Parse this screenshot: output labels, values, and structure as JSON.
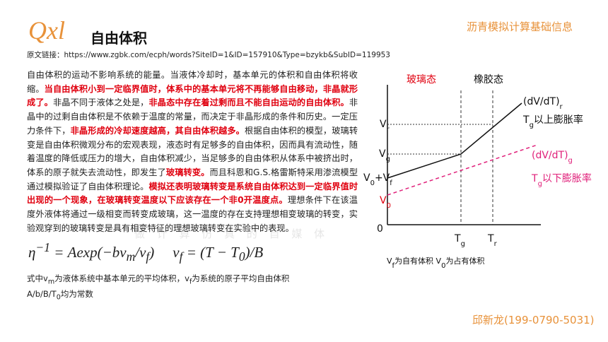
{
  "header": {
    "logo": "Qxl",
    "title": "自由体积",
    "brand": "沥青模拟计算基础信息"
  },
  "source": "原文链接：https://www.zgbk.com/ecph/words?SiteID=1&ID=157910&Type=bzykb&SubID=119953",
  "body": [
    {
      "t": "自由体积的运动不影响系统的能量。当液体冷却时，基本单元的体积和自由体积将收缩。"
    },
    {
      "t": "当自由体积小到一定临界值时，体系中的基本单元将不再能够自由移动，非晶就形成了。",
      "s": "hl"
    },
    {
      "t": "非晶不同于液体之处是，"
    },
    {
      "t": "非晶态中存在着过剩而且不能自由运动的自由体积。",
      "s": "hl"
    },
    {
      "t": "非晶中的过剩自由体积是不依赖于温度的常量，而决定于非晶形成的条件和历史。一定压力条件下，"
    },
    {
      "t": "非晶形成的冷却速度越高，其自由体积越多。",
      "s": "hl"
    },
    {
      "t": "根据自由体积的模型，玻璃转变是自由体积微观分布的宏观表现，液态时有足够多的自由体积，因而具有流动性，随着温度的降低或压力的增大，自由体积减少，当足够多的自由体积从体系中被挤出时，体系的原子就失去流动性，即发生了"
    },
    {
      "t": "玻璃转变。",
      "s": "hl"
    },
    {
      "t": "而且科恩和G.S.格雷斯特采用渗流模型通过模拟验证了自由体积理论。"
    },
    {
      "t": "模拟还表明玻璃转变是系统自由体积达到一定临界值时出现的一个现象，在玻璃转变温度以下应该存在一个非0开温度点。",
      "s": "hl"
    },
    {
      "t": "理想条件下在该温度外液体将通过一级相变而转变成玻璃，这一温度的存在支持理想相变玻璃的转变，实验观穿到的玻璃转变是具有相变特征的理想玻璃转变在实验中的表现。"
    }
  ],
  "formula": {
    "left": [
      {
        "t": "η"
      },
      {
        "t": "−1",
        "s": "sup"
      },
      {
        "t": " = Aexp(−bv"
      },
      {
        "t": "m",
        "s": "sub"
      },
      {
        "t": "/v"
      },
      {
        "t": "f",
        "s": "sub"
      },
      {
        "t": ")"
      }
    ],
    "right": [
      {
        "t": "v"
      },
      {
        "t": "f",
        "s": "sub"
      },
      {
        "t": " = (T − T"
      },
      {
        "t": "0",
        "s": "sub"
      },
      {
        "t": ")/B"
      }
    ]
  },
  "notes": [
    [
      {
        "t": "式中v"
      },
      {
        "t": "m",
        "s": "sub"
      },
      {
        "t": "为液体系统中基本单元的平均体积，v"
      },
      {
        "t": "f",
        "s": "sub"
      },
      {
        "t": "为系统的原子平均自由体积"
      }
    ],
    [
      {
        "t": "A/b/B/T"
      },
      {
        "t": "0",
        "s": "sub"
      },
      {
        "t": "均为常数"
      }
    ]
  ],
  "diagram": {
    "glass": [
      {
        "t": "玻璃态"
      }
    ],
    "rubber": [
      {
        "t": "橡胶态"
      }
    ],
    "vr": [
      {
        "t": "V"
      },
      {
        "t": "r",
        "s": "sub"
      }
    ],
    "vg": [
      {
        "t": "V"
      },
      {
        "t": "g",
        "s": "sub"
      }
    ],
    "v0vf": [
      {
        "t": "V"
      },
      {
        "t": "0",
        "s": "sub"
      },
      {
        "t": "+V"
      },
      {
        "t": "f",
        "s": "sub"
      }
    ],
    "v0": [
      {
        "t": "V"
      },
      {
        "t": "0",
        "s": "sub"
      }
    ],
    "origin": [
      {
        "t": "0"
      }
    ],
    "tg": [
      {
        "t": "T"
      },
      {
        "t": "g",
        "s": "sub"
      }
    ],
    "tr": [
      {
        "t": "T"
      },
      {
        "t": "r",
        "s": "sub"
      }
    ],
    "rate_r": [
      {
        "t": "(dV/dT)"
      },
      {
        "t": "r",
        "s": "sub"
      }
    ],
    "rate_r_label": [
      {
        "t": "T"
      },
      {
        "t": "g",
        "s": "sub"
      },
      {
        "t": "以上膨胀率"
      }
    ],
    "rate_g": [
      {
        "t": "(dV/dT)"
      },
      {
        "t": "g",
        "s": "sub"
      }
    ],
    "rate_g_label": [
      {
        "t": "T"
      },
      {
        "t": "g",
        "s": "sub"
      },
      {
        "t": "以下膨胀率"
      }
    ],
    "caption": [
      {
        "t": "V"
      },
      {
        "t": "f",
        "s": "sub"
      },
      {
        "t": "为自有体积  V"
      },
      {
        "t": "0",
        "s": "sub"
      },
      {
        "t": "为占有体积"
      }
    ]
  },
  "watermark": "做 计 算 仿 真 的 自 媒 体",
  "footer": "邱新龙(199-0790-5031)"
}
